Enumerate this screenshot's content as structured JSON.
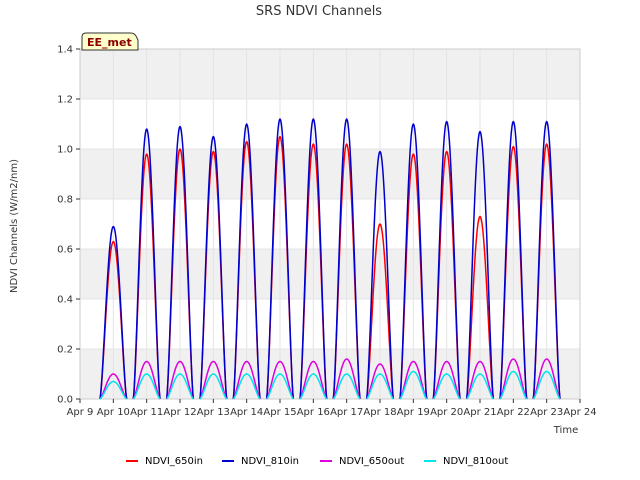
{
  "chart_data": {
    "type": "line",
    "title": "SRS NDVI Channels",
    "xlabel": "Time",
    "ylabel": "NDVI Channels (W/m2/nm)",
    "badge": "EE_met",
    "xlim": [
      9,
      24
    ],
    "ylim": [
      0,
      1.4
    ],
    "x_ticks": [
      {
        "value": 9,
        "label": "Apr 9"
      },
      {
        "value": 10,
        "label": "Apr 10"
      },
      {
        "value": 11,
        "label": "Apr 11"
      },
      {
        "value": 12,
        "label": "Apr 12"
      },
      {
        "value": 13,
        "label": "Apr 13"
      },
      {
        "value": 14,
        "label": "Apr 14"
      },
      {
        "value": 15,
        "label": "Apr 15"
      },
      {
        "value": 16,
        "label": "Apr 16"
      },
      {
        "value": 17,
        "label": "Apr 17"
      },
      {
        "value": 18,
        "label": "Apr 18"
      },
      {
        "value": 19,
        "label": "Apr 19"
      },
      {
        "value": 20,
        "label": "Apr 20"
      },
      {
        "value": 21,
        "label": "Apr 21"
      },
      {
        "value": 22,
        "label": "Apr 22"
      },
      {
        "value": 23,
        "label": "Apr 23"
      },
      {
        "value": 24,
        "label": "Apr 24"
      }
    ],
    "y_ticks": [
      {
        "value": 0.0,
        "label": "0.0"
      },
      {
        "value": 0.2,
        "label": "0.2"
      },
      {
        "value": 0.4,
        "label": "0.4"
      },
      {
        "value": 0.6,
        "label": "0.6"
      },
      {
        "value": 0.8,
        "label": "0.8"
      },
      {
        "value": 1.0,
        "label": "1.0"
      },
      {
        "value": 1.2,
        "label": "1.2"
      },
      {
        "value": 1.4,
        "label": "1.4"
      }
    ],
    "grid": true,
    "legend_position": "bottom",
    "days": [
      10,
      11,
      12,
      13,
      14,
      15,
      16,
      17,
      18,
      19,
      20,
      21,
      22,
      23
    ],
    "series": [
      {
        "name": "NDVI_650in",
        "color": "#ff0000",
        "daily_peaks": [
          0.63,
          0.98,
          1.0,
          0.99,
          1.03,
          1.05,
          1.02,
          1.02,
          0.7,
          0.98,
          0.99,
          0.73,
          1.01,
          1.02
        ]
      },
      {
        "name": "NDVI_810in",
        "color": "#0000cc",
        "daily_peaks": [
          0.69,
          1.08,
          1.09,
          1.05,
          1.1,
          1.12,
          1.12,
          1.12,
          0.99,
          1.1,
          1.11,
          1.07,
          1.11,
          1.11
        ]
      },
      {
        "name": "NDVI_650out",
        "color": "#dd00dd",
        "daily_peaks": [
          0.1,
          0.15,
          0.15,
          0.15,
          0.15,
          0.15,
          0.15,
          0.16,
          0.14,
          0.15,
          0.15,
          0.15,
          0.16,
          0.16
        ]
      },
      {
        "name": "NDVI_810out",
        "color": "#00e5ee",
        "daily_peaks": [
          0.07,
          0.1,
          0.1,
          0.1,
          0.1,
          0.1,
          0.1,
          0.1,
          0.1,
          0.11,
          0.1,
          0.1,
          0.11,
          0.11
        ]
      }
    ]
  }
}
